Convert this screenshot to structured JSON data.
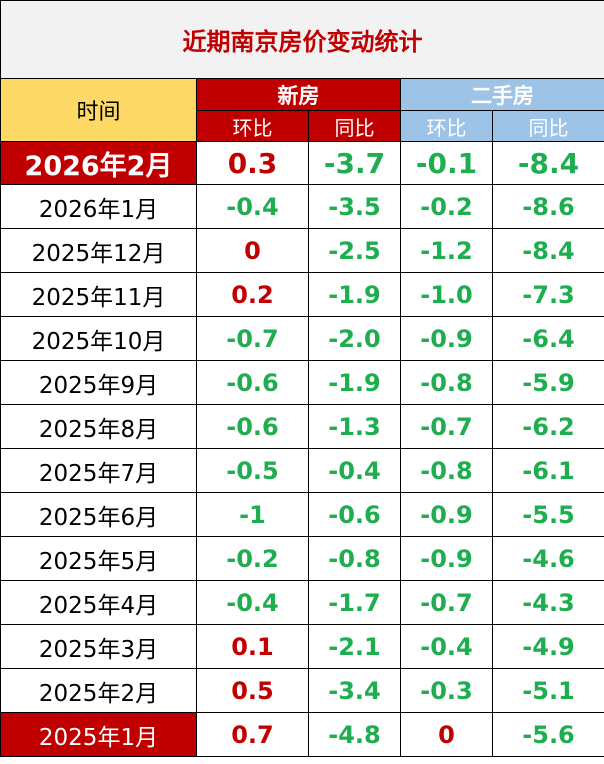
{
  "title": "近期南京房价变动统计",
  "header": {
    "time_label": "时间",
    "new_house": "新房",
    "second_hand": "二手房",
    "mom": "环比",
    "yoy": "同比"
  },
  "colors": {
    "title_red": "#c00000",
    "header_yellow": "#ffd966",
    "header_blue": "#9dc3e6",
    "positive": "#c00000",
    "negative": "#1fae4f"
  },
  "rows": [
    {
      "date": "2026年2月",
      "new_mom": "0.3",
      "new_yoy": "-3.7",
      "old_mom": "-0.1",
      "old_yoy": "-8.4"
    },
    {
      "date": "2026年1月",
      "new_mom": "-0.4",
      "new_yoy": "-3.5",
      "old_mom": "-0.2",
      "old_yoy": "-8.6"
    },
    {
      "date": "2025年12月",
      "new_mom": "0",
      "new_yoy": "-2.5",
      "old_mom": "-1.2",
      "old_yoy": "-8.4"
    },
    {
      "date": "2025年11月",
      "new_mom": "0.2",
      "new_yoy": "-1.9",
      "old_mom": "-1.0",
      "old_yoy": "-7.3"
    },
    {
      "date": "2025年10月",
      "new_mom": "-0.7",
      "new_yoy": "-2.0",
      "old_mom": "-0.9",
      "old_yoy": "-6.4"
    },
    {
      "date": "2025年9月",
      "new_mom": "-0.6",
      "new_yoy": "-1.9",
      "old_mom": "-0.8",
      "old_yoy": "-5.9"
    },
    {
      "date": "2025年8月",
      "new_mom": "-0.6",
      "new_yoy": "-1.3",
      "old_mom": "-0.7",
      "old_yoy": "-6.2"
    },
    {
      "date": "2025年7月",
      "new_mom": "-0.5",
      "new_yoy": "-0.4",
      "old_mom": "-0.8",
      "old_yoy": "-6.1"
    },
    {
      "date": "2025年6月",
      "new_mom": "-1",
      "new_yoy": "-0.6",
      "old_mom": "-0.9",
      "old_yoy": "-5.5"
    },
    {
      "date": "2025年5月",
      "new_mom": "-0.2",
      "new_yoy": "-0.8",
      "old_mom": "-0.9",
      "old_yoy": "-4.6"
    },
    {
      "date": "2025年4月",
      "new_mom": "-0.4",
      "new_yoy": "-1.7",
      "old_mom": "-0.7",
      "old_yoy": "-4.3"
    },
    {
      "date": "2025年3月",
      "new_mom": "0.1",
      "new_yoy": "-2.1",
      "old_mom": "-0.4",
      "old_yoy": "-4.9"
    },
    {
      "date": "2025年2月",
      "new_mom": "0.5",
      "new_yoy": "-3.4",
      "old_mom": "-0.3",
      "old_yoy": "-5.1"
    },
    {
      "date": "2025年1月",
      "new_mom": "0.7",
      "new_yoy": "-4.8",
      "old_mom": "0",
      "old_yoy": "-5.6"
    }
  ]
}
